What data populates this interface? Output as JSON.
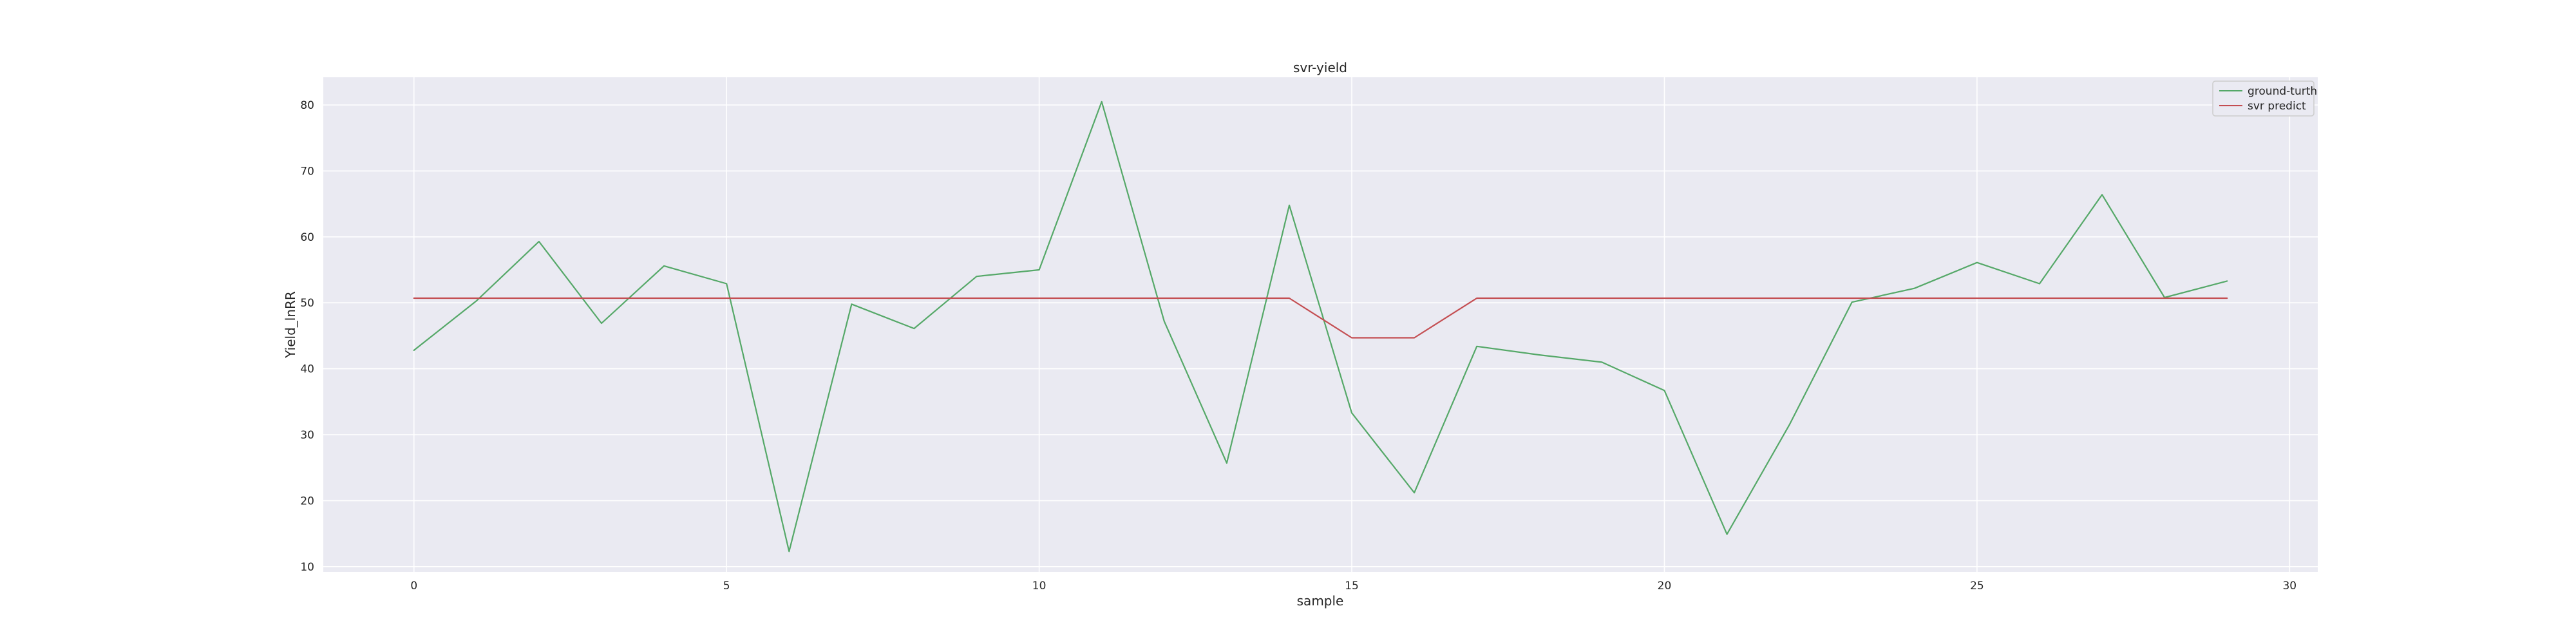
{
  "chart_data": {
    "type": "line",
    "title": "svr-yield",
    "xlabel": "sample",
    "ylabel": "Yield_lnRR",
    "xlim": [
      -1.45,
      30.45
    ],
    "ylim": [
      9.2,
      84.2
    ],
    "xticks": [
      0,
      5,
      10,
      15,
      20,
      25,
      30
    ],
    "yticks": [
      10,
      20,
      30,
      40,
      50,
      60,
      70,
      80
    ],
    "grid": true,
    "legend_position": "top-right",
    "background": "#eaeaf2",
    "series": [
      {
        "name": "ground-turth",
        "color": "#55a868",
        "x": [
          0,
          1,
          2,
          3,
          4,
          5,
          6,
          7,
          8,
          9,
          10,
          11,
          12,
          13,
          14,
          15,
          16,
          17,
          18,
          19,
          20,
          21,
          22,
          23,
          24,
          25,
          26,
          27,
          28,
          29
        ],
        "values": [
          42.8,
          50.3,
          59.3,
          46.9,
          55.6,
          52.9,
          12.3,
          49.8,
          46.1,
          54.0,
          55.0,
          80.5,
          47.2,
          25.7,
          64.8,
          33.3,
          21.2,
          43.4,
          42.1,
          41.0,
          36.7,
          14.9,
          31.5,
          50.1,
          52.2,
          56.1,
          52.9,
          66.4,
          50.8,
          53.3
        ]
      },
      {
        "name": "svr predict",
        "color": "#c44e52",
        "x": [
          0,
          1,
          2,
          3,
          4,
          5,
          6,
          7,
          8,
          9,
          10,
          11,
          12,
          13,
          14,
          15,
          16,
          17,
          18,
          19,
          20,
          21,
          22,
          23,
          24,
          25,
          26,
          27,
          28,
          29
        ],
        "values": [
          50.7,
          50.7,
          50.7,
          50.7,
          50.7,
          50.7,
          50.7,
          50.7,
          50.7,
          50.7,
          50.7,
          50.7,
          50.7,
          50.7,
          50.7,
          44.7,
          44.7,
          50.7,
          50.7,
          50.7,
          50.7,
          50.7,
          50.7,
          50.7,
          50.7,
          50.7,
          50.7,
          50.7,
          50.7,
          50.7
        ]
      }
    ]
  }
}
